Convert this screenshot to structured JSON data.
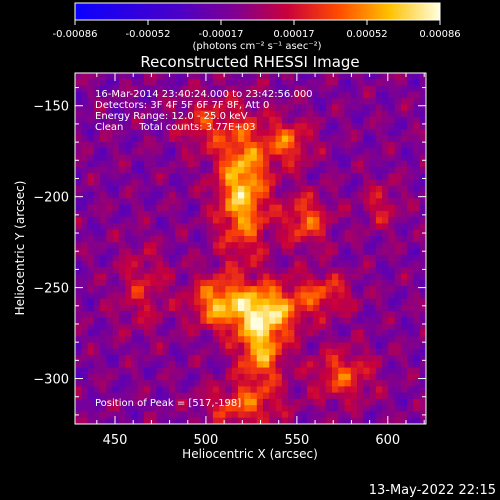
{
  "chart_data": {
    "type": "heatmap",
    "title": "Reconstructed RHESSI Image",
    "xlabel": "Heliocentric X (arcsec)",
    "ylabel": "Heliocentric Y (arcsec)",
    "xlim": [
      428,
      621
    ],
    "ylim": [
      -325,
      -132
    ],
    "xticks": [
      450,
      500,
      550,
      600
    ],
    "yticks": [
      -150,
      -200,
      -250,
      -300
    ],
    "colorbar": {
      "ticks": [
        "-0.00086",
        "-0.00052",
        "-0.00017",
        "0.00017",
        "0.00052",
        "0.00086"
      ],
      "units": "(photons cm⁻² s⁻¹ asec⁻²)",
      "range": [
        -0.00086,
        0.00086
      ]
    },
    "annotations": [
      "16-Mar-2014 23:40:24.000 to 23:42:56.000",
      "Detectors: 3F 4F 5F 6F 7F 8F, Att 0",
      "Energy Range: 12.0 - 25.0 keV",
      "Clean     Total counts: 3.77E+03"
    ],
    "peak_label": "Position of Peak = [517,-198]",
    "sources": [
      {
        "x": 520,
        "y": -195,
        "sigma_x": 10,
        "sigma_y": 26,
        "amp": 0.00078
      },
      {
        "x": 532,
        "y": -262,
        "sigma_x": 15,
        "sigma_y": 10,
        "amp": 0.00074
      },
      {
        "x": 530,
        "y": -285,
        "sigma_x": 9,
        "sigma_y": 14,
        "amp": 0.00066
      },
      {
        "x": 505,
        "y": -258,
        "sigma_x": 10,
        "sigma_y": 10,
        "amp": 0.00055
      },
      {
        "x": 545,
        "y": -170,
        "sigma_x": 9,
        "sigma_y": 9,
        "amp": 0.0005
      },
      {
        "x": 555,
        "y": -213,
        "sigma_x": 9,
        "sigma_y": 10,
        "amp": 0.0005
      },
      {
        "x": 565,
        "y": -253,
        "sigma_x": 11,
        "sigma_y": 8,
        "amp": 0.0004
      },
      {
        "x": 575,
        "y": -298,
        "sigma_x": 12,
        "sigma_y": 10,
        "amp": 0.00046
      },
      {
        "x": 498,
        "y": -160,
        "sigma_x": 10,
        "sigma_y": 10,
        "amp": 0.00036
      },
      {
        "x": 465,
        "y": -250,
        "sigma_x": 10,
        "sigma_y": 16,
        "amp": 0.0003
      },
      {
        "x": 520,
        "y": -315,
        "sigma_x": 15,
        "sigma_y": 8,
        "amp": 0.00045
      },
      {
        "x": 596,
        "y": -205,
        "sigma_x": 7,
        "sigma_y": 9,
        "amp": 0.0003
      }
    ]
  },
  "footer_timestamp": "13-May-2022 22:15"
}
